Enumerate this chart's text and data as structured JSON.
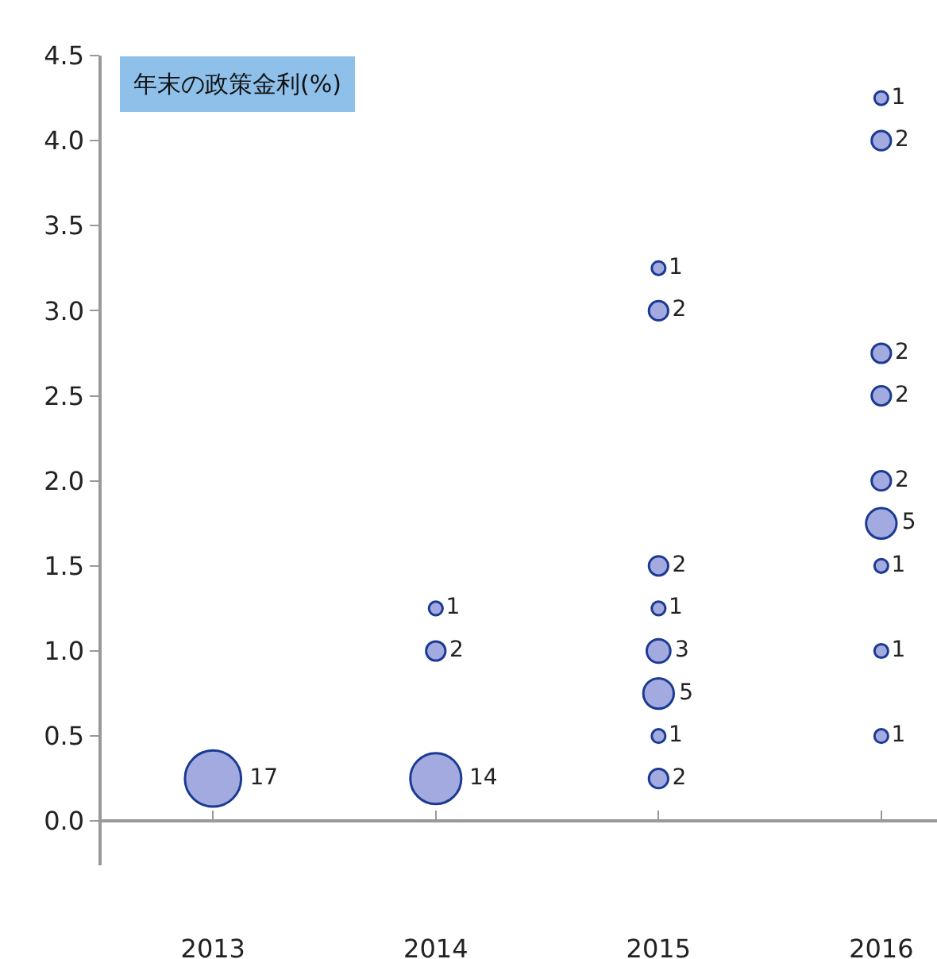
{
  "chart_data": {
    "type": "bubble",
    "title": "年末の政策金利(%)",
    "series": [
      {
        "color": "#a3aae0",
        "x": [
          2013,
          2014,
          2014,
          2014,
          2015,
          2015,
          2015,
          2015,
          2015,
          2015,
          2015,
          2015,
          2016,
          2016,
          2016,
          2016,
          2016,
          2016,
          2016,
          2016,
          2016
        ],
        "values": [
          0.25,
          0.25,
          1.0,
          1.25,
          0.25,
          0.5,
          0.75,
          1.0,
          1.25,
          1.5,
          3.0,
          3.25,
          0.5,
          1.0,
          1.5,
          1.75,
          2.0,
          2.5,
          2.75,
          4.0,
          4.25
        ],
        "sizes": [
          17,
          14,
          2,
          1,
          2,
          1,
          5,
          3,
          1,
          2,
          2,
          1,
          1,
          1,
          1,
          5,
          2,
          2,
          2,
          2,
          1
        ],
        "value_labels": [
          "17",
          "14",
          "2",
          "1",
          "2",
          "1",
          "5",
          "3",
          "1",
          "2",
          "2",
          "1",
          "1",
          "1",
          "1",
          "5",
          "2",
          "2",
          "2",
          "2",
          "1"
        ]
      }
    ],
    "xlim": [
      2012.5,
      2016.25
    ],
    "xticks": [
      2013,
      2014,
      2015,
      2016
    ],
    "ylim": [
      -0.26,
      4.5
    ],
    "yticks": [
      {
        "value": 0,
        "label": "0.0"
      },
      0.5,
      {
        "value": 1,
        "label": "1.0"
      },
      1.5,
      {
        "value": 2,
        "label": "2.0"
      },
      2.5,
      {
        "value": 3,
        "label": "3.0"
      },
      3.5,
      {
        "value": 4,
        "label": "4.0"
      },
      4.5
    ],
    "marker": "circle"
  }
}
